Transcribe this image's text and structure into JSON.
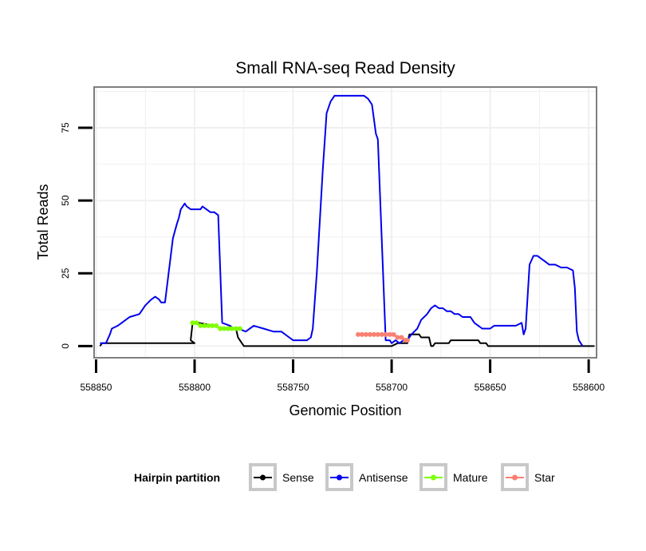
{
  "chart_data": {
    "type": "line",
    "title": "Small RNA-seq Read Density",
    "xlabel": "Genomic Position",
    "ylabel": "Total Reads",
    "x_reversed": true,
    "xlim": [
      558851,
      558596
    ],
    "ylim": [
      -4,
      89
    ],
    "x_ticks": [
      558850,
      558800,
      558750,
      558700,
      558650,
      558600
    ],
    "y_ticks": [
      0,
      25,
      50,
      75
    ],
    "grid": true,
    "legend": {
      "title": "Hairpin partition",
      "position": "bottom",
      "entries": [
        {
          "label": "Sense",
          "color": "#000000"
        },
        {
          "label": "Antisense",
          "color": "#0000ee"
        },
        {
          "label": "Mature",
          "color": "#7fff00"
        },
        {
          "label": "Star",
          "color": "#fa8072"
        }
      ]
    },
    "series": [
      {
        "name": "Sense",
        "color": "#000000",
        "x": [
          558848,
          558847,
          558800,
          558802,
          558801,
          558798,
          558790,
          558786,
          558779,
          558778,
          558777,
          558775,
          558765,
          558730,
          558700,
          558697,
          558692,
          558691,
          558686,
          558685,
          558681,
          558680,
          558679,
          558678,
          558671,
          558670,
          558666,
          558656,
          558655,
          558652,
          558651,
          558650,
          558597
        ],
        "y": [
          0,
          1,
          1,
          2,
          8,
          8,
          7,
          6,
          6,
          3,
          2,
          0,
          0,
          0,
          0,
          1,
          1,
          4,
          4,
          3,
          3,
          0,
          0,
          1,
          1,
          2,
          2,
          2,
          1,
          1,
          0,
          0,
          0
        ]
      },
      {
        "name": "Antisense",
        "color": "#0000ee",
        "x": [
          558848,
          558845,
          558843,
          558842,
          558839,
          558837,
          558833,
          558828,
          558825,
          558822,
          558820,
          558818,
          558817,
          558815,
          558811,
          558809,
          558808,
          558807,
          558806,
          558805,
          558804,
          558802,
          558797,
          558796,
          558794,
          558792,
          558790,
          558788,
          558786,
          558782,
          558780,
          558778,
          558774,
          558770,
          558765,
          558760,
          558756,
          558752,
          558750,
          558746,
          558743,
          558741,
          558740,
          558738,
          558735,
          558733,
          558731,
          558729,
          558726,
          558724,
          558722,
          558720,
          558718,
          558716,
          558714,
          558712,
          558710,
          558708,
          558707,
          558703,
          558701,
          558700,
          558698,
          558696,
          558694,
          558692,
          558690,
          558687,
          558685,
          558682,
          558680,
          558678,
          558676,
          558674,
          558672,
          558670,
          558668,
          558666,
          558664,
          558662,
          558660,
          558658,
          558656,
          558654,
          558652,
          558650,
          558648,
          558646,
          558644,
          558642,
          558640,
          558637,
          558634,
          558633,
          558632,
          558630,
          558628,
          558626,
          558624,
          558622,
          558620,
          558617,
          558614,
          558611,
          558608,
          558607,
          558606,
          558605,
          558604,
          558603
        ],
        "y": [
          1,
          1,
          4,
          6,
          7,
          8,
          10,
          11,
          14,
          16,
          17,
          16,
          15,
          15,
          37,
          42,
          44,
          47,
          48,
          49,
          48,
          47,
          47,
          48,
          47,
          46,
          46,
          45,
          8,
          7,
          6,
          6,
          5,
          7,
          6,
          5,
          5,
          3,
          2,
          2,
          2,
          3,
          6,
          25,
          60,
          80,
          84,
          86,
          86,
          86,
          86,
          86,
          86,
          86,
          86,
          85,
          83,
          73,
          71,
          2,
          2,
          1,
          2,
          1,
          2,
          2,
          4,
          6,
          9,
          11,
          13,
          14,
          13,
          13,
          12,
          12,
          11,
          11,
          10,
          10,
          10,
          8,
          7,
          6,
          6,
          6,
          7,
          7,
          7,
          7,
          7,
          7,
          8,
          4,
          6,
          28,
          31,
          31,
          30,
          29,
          28,
          28,
          27,
          27,
          26,
          20,
          5,
          2,
          1,
          0
        ]
      },
      {
        "name": "Mature",
        "color": "#7fff00",
        "x": [
          558801,
          558799,
          558797,
          558795,
          558793,
          558791,
          558789,
          558787,
          558785,
          558783,
          558781,
          558779,
          558777
        ],
        "y": [
          8,
          8,
          7,
          7,
          7,
          7,
          7,
          6,
          6,
          6,
          6,
          6,
          6
        ]
      },
      {
        "name": "Star",
        "color": "#fa8072",
        "x": [
          558717,
          558715,
          558713,
          558711,
          558709,
          558707,
          558705,
          558703,
          558701,
          558699,
          558697,
          558695,
          558693,
          558692
        ],
        "y": [
          4,
          4,
          4,
          4,
          4,
          4,
          4,
          4,
          4,
          4,
          3,
          3,
          2,
          2
        ]
      }
    ]
  }
}
